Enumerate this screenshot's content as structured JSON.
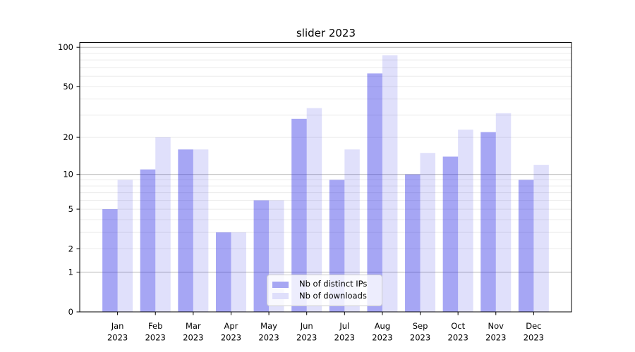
{
  "title": "slider 2023",
  "chart_data": {
    "type": "bar",
    "title": "slider 2023",
    "categories": [
      "Jan",
      "Feb",
      "Mar",
      "Apr",
      "May",
      "Jun",
      "Jul",
      "Aug",
      "Sep",
      "Oct",
      "Nov",
      "Dec"
    ],
    "category_year": "2023",
    "series": [
      {
        "name": "Nb of distinct IPs",
        "color": "rgba(44,44,228,0.42)",
        "solid_color": "#a6a6f3",
        "values": [
          5,
          11,
          16,
          3,
          6,
          28,
          9,
          63,
          10,
          14,
          22,
          9
        ]
      },
      {
        "name": "Nb of downloads",
        "color": "rgba(44,44,228,0.15)",
        "solid_color": "#dfdffb",
        "values": [
          9,
          20,
          16,
          3,
          6,
          34,
          16,
          87,
          15,
          23,
          31,
          12
        ]
      }
    ],
    "yscale": "log1p",
    "yticks": [
      100,
      50,
      20,
      10,
      5,
      2,
      1,
      0
    ],
    "ytick_labels": [
      "100",
      "50",
      "20",
      "10",
      "5",
      "2",
      "1",
      "0"
    ],
    "ylim": [
      0,
      110
    ],
    "xlabel": "",
    "ylabel": "",
    "grid": "on",
    "legend_position": "lower center"
  },
  "colors": {
    "background": "#ffffff",
    "axis": "#000000",
    "major_grid": "#b3b3b3",
    "minor_grid": "#ebebeb",
    "tick": "#000000",
    "legend_border": "#cccccc"
  }
}
